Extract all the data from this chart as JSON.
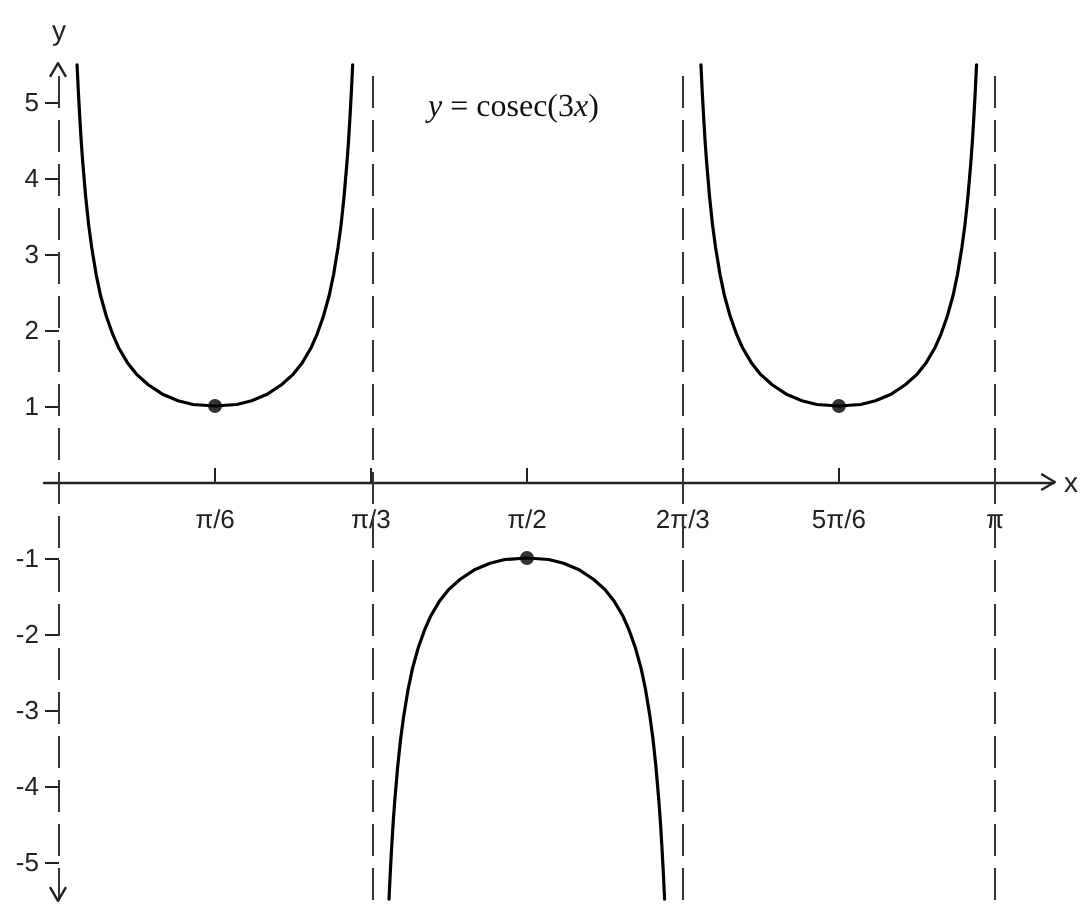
{
  "chart_data": {
    "type": "line",
    "xlabel": "x",
    "ylabel": "y",
    "annotations": [
      "y = cosec(3x)"
    ],
    "xlim": [
      -0.05,
      3.34
    ],
    "ylim": [
      -5.5,
      5.5
    ],
    "xticks": [
      {
        "value": 0.524,
        "label": "π/6"
      },
      {
        "value": 1.047,
        "label": "π/3"
      },
      {
        "value": 1.571,
        "label": "π/2"
      },
      {
        "value": 2.094,
        "label": "2π/3"
      },
      {
        "value": 2.618,
        "label": "5π/6"
      },
      {
        "value": 3.142,
        "label": "π"
      }
    ],
    "yticks": [
      -5,
      -4,
      -3,
      -2,
      -1,
      1,
      2,
      3,
      4,
      5
    ],
    "ref_lines": [
      {
        "axis": "x",
        "value": 0,
        "line_style": "dashed",
        "color": "#333333"
      },
      {
        "axis": "x",
        "value": 1.047,
        "line_style": "dashed",
        "color": "#333333"
      },
      {
        "axis": "x",
        "value": 2.094,
        "line_style": "dashed",
        "color": "#333333"
      },
      {
        "axis": "x",
        "value": 3.142,
        "line_style": "dashed",
        "color": "#333333"
      }
    ],
    "series": [
      {
        "type": "line",
        "color": "#000000",
        "marker": "none",
        "x": [
          0.061,
          0.065,
          0.07,
          0.075,
          0.08,
          0.09,
          0.1,
          0.11,
          0.125,
          0.14,
          0.16,
          0.18,
          0.2,
          0.23,
          0.26,
          0.3,
          0.35,
          0.4,
          0.45,
          0.524,
          0.597,
          0.647,
          0.697,
          0.747,
          0.787,
          0.817,
          0.847,
          0.867,
          0.887,
          0.907,
          0.922,
          0.937,
          0.947,
          0.957,
          0.967,
          0.972,
          0.977,
          0.982,
          0.986
        ],
        "values": [
          5.49,
          5.16,
          4.8,
          4.48,
          4.21,
          3.75,
          3.38,
          3.09,
          2.73,
          2.45,
          2.17,
          1.95,
          1.77,
          1.57,
          1.42,
          1.28,
          1.15,
          1.07,
          1.02,
          1,
          1.02,
          1.07,
          1.15,
          1.28,
          1.42,
          1.57,
          1.77,
          1.95,
          2.17,
          2.45,
          2.73,
          3.09,
          3.38,
          3.75,
          4.21,
          4.48,
          4.8,
          5.16,
          5.49
        ]
      },
      {
        "type": "line",
        "color": "#000000",
        "marker": "none",
        "x": [
          1.108,
          1.112,
          1.117,
          1.122,
          1.127,
          1.137,
          1.147,
          1.157,
          1.172,
          1.187,
          1.207,
          1.227,
          1.247,
          1.277,
          1.307,
          1.347,
          1.397,
          1.447,
          1.497,
          1.571,
          1.644,
          1.694,
          1.744,
          1.794,
          1.834,
          1.864,
          1.894,
          1.914,
          1.934,
          1.954,
          1.969,
          1.984,
          1.994,
          2.004,
          2.014,
          2.019,
          2.024,
          2.029,
          2.033
        ],
        "values": [
          -5.49,
          -5.16,
          -4.8,
          -4.48,
          -4.21,
          -3.75,
          -3.38,
          -3.09,
          -2.73,
          -2.45,
          -2.17,
          -1.95,
          -1.77,
          -1.57,
          -1.42,
          -1.28,
          -1.15,
          -1.07,
          -1.02,
          -1,
          -1.02,
          -1.07,
          -1.15,
          -1.28,
          -1.42,
          -1.57,
          -1.77,
          -1.95,
          -2.17,
          -2.45,
          -2.73,
          -3.09,
          -3.38,
          -3.75,
          -4.21,
          -4.48,
          -4.8,
          -5.16,
          -5.49
        ]
      },
      {
        "type": "line",
        "color": "#000000",
        "marker": "none",
        "x": [
          2.155,
          2.159,
          2.164,
          2.169,
          2.174,
          2.184,
          2.194,
          2.204,
          2.219,
          2.234,
          2.254,
          2.274,
          2.294,
          2.324,
          2.354,
          2.394,
          2.444,
          2.494,
          2.544,
          2.618,
          2.691,
          2.741,
          2.791,
          2.841,
          2.881,
          2.911,
          2.941,
          2.961,
          2.981,
          3.001,
          3.016,
          3.031,
          3.041,
          3.051,
          3.061,
          3.066,
          3.071,
          3.076,
          3.08
        ],
        "values": [
          5.49,
          5.16,
          4.8,
          4.48,
          4.21,
          3.75,
          3.38,
          3.09,
          2.73,
          2.45,
          2.17,
          1.95,
          1.77,
          1.57,
          1.42,
          1.28,
          1.15,
          1.07,
          1.02,
          1,
          1.02,
          1.07,
          1.15,
          1.28,
          1.42,
          1.57,
          1.77,
          1.95,
          2.17,
          2.45,
          2.73,
          3.09,
          3.38,
          3.75,
          4.21,
          4.48,
          4.8,
          5.16,
          5.49
        ]
      },
      {
        "type": "scatter",
        "color": "#000000",
        "marker": "circle",
        "x": [
          0.524,
          1.571,
          2.618
        ],
        "values": [
          1,
          -1,
          1
        ]
      }
    ]
  }
}
